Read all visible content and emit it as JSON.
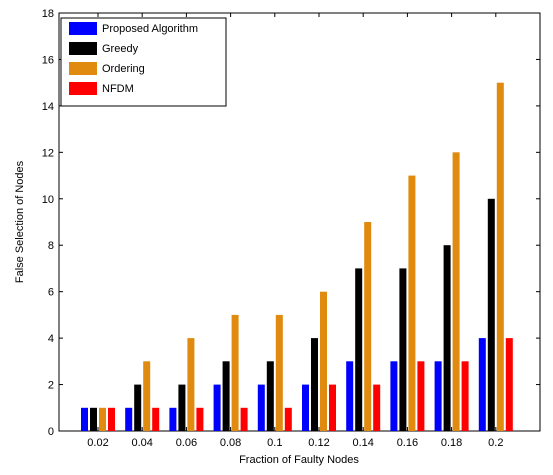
{
  "chart_data": {
    "type": "bar",
    "title": "",
    "xlabel": "Fraction of Faulty Nodes",
    "ylabel": "False Selection of Nodes",
    "categories": [
      "0.02",
      "0.04",
      "0.06",
      "0.08",
      "0.1",
      "0.12",
      "0.14",
      "0.16",
      "0.18",
      "0.2"
    ],
    "ylim": [
      0,
      18
    ],
    "yticks": [
      "0",
      "2",
      "4",
      "6",
      "8",
      "10",
      "12",
      "14",
      "16",
      "18"
    ],
    "grid": false,
    "legend_position": "top-left",
    "series": [
      {
        "name": "Proposed Algorithm",
        "color": "#0000ff",
        "values": [
          1,
          1,
          1,
          2,
          2,
          2,
          3,
          3,
          3,
          4
        ]
      },
      {
        "name": "Greedy",
        "color": "#000000",
        "values": [
          1,
          2,
          2,
          3,
          3,
          4,
          7,
          7,
          8,
          10
        ]
      },
      {
        "name": "Ordering",
        "color": "#e08a10",
        "values": [
          1,
          3,
          4,
          5,
          5,
          6,
          9,
          11,
          12,
          15
        ]
      },
      {
        "name": "NFDM",
        "color": "#ff0000",
        "values": [
          1,
          1,
          1,
          1,
          1,
          2,
          2,
          3,
          3,
          4
        ]
      }
    ]
  }
}
